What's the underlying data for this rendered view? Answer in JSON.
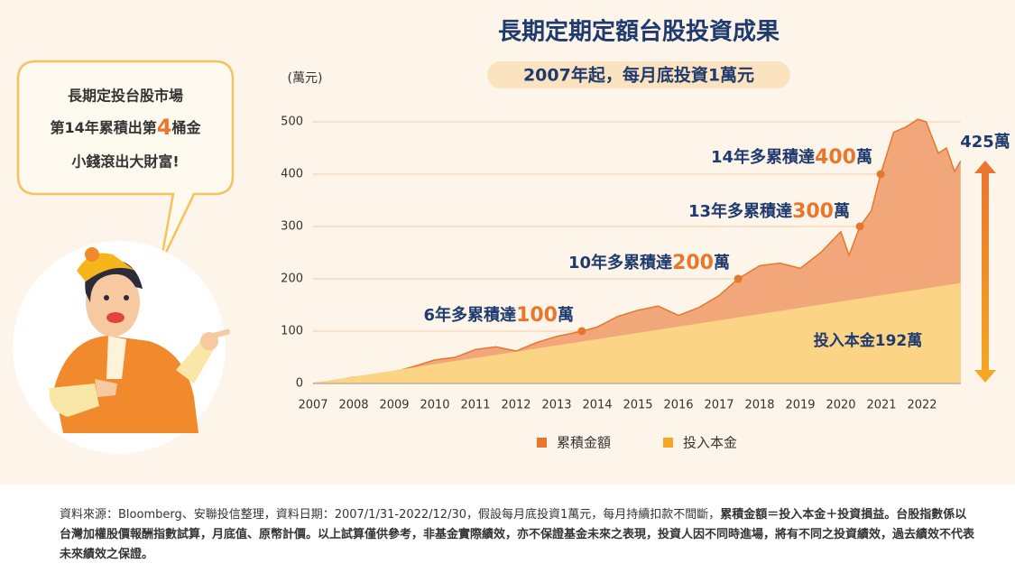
{
  "chart_data": {
    "type": "area",
    "title": "長期定期定額台股投資成果",
    "subtitle": "2007年起，每月底投資1萬元",
    "y_label": "(萬元)",
    "ylim": [
      0,
      500
    ],
    "yticks": [
      0,
      100,
      200,
      300,
      400,
      500
    ],
    "xlim": [
      2007,
      2022.95
    ],
    "xticks": [
      2007,
      2008,
      2009,
      2010,
      2011,
      2012,
      2013,
      2014,
      2015,
      2016,
      2017,
      2018,
      2019,
      2020,
      2021,
      2022
    ],
    "grid": true,
    "series": [
      {
        "name": "累積金額",
        "color": "#e8762c",
        "fill": "#f2a77a",
        "x": [
          2007.0,
          2007.5,
          2008.0,
          2008.5,
          2009.0,
          2009.5,
          2010.0,
          2010.5,
          2011.0,
          2011.5,
          2012.0,
          2012.5,
          2013.0,
          2013.62,
          2014.0,
          2014.5,
          2015.0,
          2015.5,
          2016.0,
          2016.5,
          2017.0,
          2017.47,
          2018.0,
          2018.5,
          2019.0,
          2019.5,
          2020.0,
          2020.2,
          2020.47,
          2020.75,
          2020.98,
          2021.3,
          2021.6,
          2021.9,
          2022.1,
          2022.4,
          2022.6,
          2022.8,
          2022.95
        ],
        "values": [
          0,
          5,
          12,
          15,
          22,
          33,
          45,
          50,
          65,
          70,
          62,
          78,
          90,
          100,
          108,
          128,
          140,
          148,
          130,
          145,
          168,
          200,
          225,
          230,
          220,
          250,
          290,
          245,
          300,
          330,
          400,
          480,
          490,
          505,
          500,
          440,
          450,
          405,
          425
        ]
      },
      {
        "name": "投入本金",
        "color": "#f5a623",
        "fill": "#fbd486",
        "x": [
          2007.0,
          2022.95
        ],
        "values": [
          1,
          192
        ]
      }
    ],
    "annotations": [
      {
        "x": 2013.62,
        "value": 100,
        "prefix": "6年多累積達",
        "unit": "萬"
      },
      {
        "x": 2017.47,
        "value": 200,
        "prefix": "10年多累積達",
        "unit": "萬"
      },
      {
        "x": 2020.47,
        "value": 300,
        "prefix": "13年多累積達",
        "unit": "萬"
      },
      {
        "x": 2020.98,
        "value": 400,
        "prefix": "14年多累積達",
        "unit": "萬"
      }
    ],
    "final_label": "425萬",
    "principal_label": "投入本金192萬"
  },
  "bubble": {
    "line1": "長期定投台股市場",
    "line2_before": "第14年累積出第",
    "line2_number": "4",
    "line2_after": "桶金",
    "line3": "小錢滾出大財富!"
  },
  "footnote": {
    "normal": "資料來源：Bloomberg、安聯投信整理，資料日期：2007/1/31-2022/12/30，假設每月底投資1萬元，每月持續扣款不間斷，",
    "bold": "累積金額＝投入本金＋投資損益。台股指數係以台灣加權股價報酬指數試算，月底值、原幣計價。以上試算僅供參考，非基金實際績效，亦不保證基金未來之表現，投資人因不同時進場，將有不同之投資績效，過去績效不代表未來績效之保證。"
  }
}
